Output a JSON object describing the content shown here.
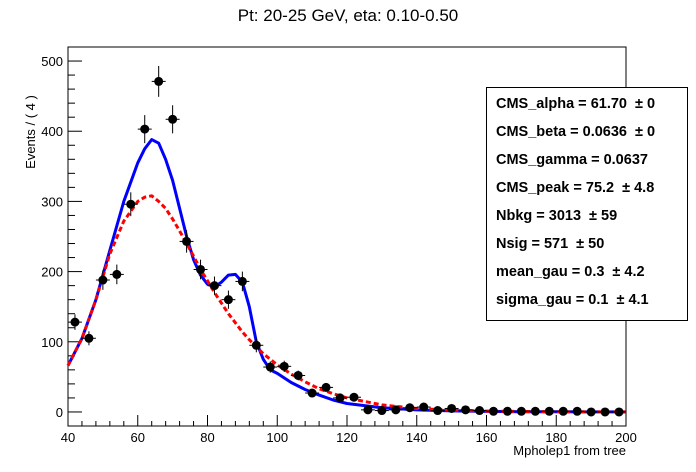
{
  "chart_data": {
    "type": "scatter",
    "title": "Pt: 20-25 GeV, eta: 0.10-0.50",
    "xlabel": "Mpholep1 from tree",
    "ylabel": "Events / ( 4 )",
    "xlim": [
      40,
      200
    ],
    "ylim": [
      -20,
      520
    ],
    "xticks": [
      "40",
      "60",
      "80",
      "100",
      "120",
      "140",
      "160",
      "180",
      "200"
    ],
    "yticks": [
      "0",
      "100",
      "200",
      "300",
      "400",
      "500"
    ],
    "bin_width": 4,
    "points": {
      "x": [
        42,
        46,
        50,
        54,
        58,
        62,
        66,
        70,
        74,
        78,
        82,
        86,
        90,
        94,
        98,
        102,
        106,
        110,
        114,
        118,
        122,
        126,
        130,
        134,
        138,
        142,
        146,
        150,
        154,
        158,
        162,
        166,
        170,
        174,
        178,
        182,
        186,
        190,
        194,
        198
      ],
      "y": [
        128,
        105,
        188,
        196,
        296,
        403,
        471,
        417,
        243,
        203,
        180,
        160,
        186,
        95,
        64,
        65,
        52,
        27,
        35,
        20,
        21,
        3,
        2,
        3,
        6,
        7,
        2,
        5,
        3,
        2,
        1,
        1,
        1,
        1,
        1,
        1,
        1,
        0,
        0,
        0
      ],
      "yerr": [
        11,
        10,
        14,
        14,
        17,
        20,
        22,
        20,
        16,
        14,
        13,
        13,
        14,
        10,
        8,
        8,
        7,
        5,
        6,
        4,
        5,
        2,
        1,
        2,
        2,
        3,
        1,
        2,
        2,
        1,
        1,
        1,
        1,
        1,
        1,
        1,
        1,
        1,
        1,
        1
      ]
    },
    "series": [
      {
        "color": "#0000ff",
        "style": "solid",
        "x": [
          40,
          44,
          48,
          52,
          56,
          60,
          62,
          64,
          66,
          68,
          70,
          72,
          74,
          76,
          78,
          80,
          82,
          84,
          86,
          88,
          90,
          92,
          94,
          96,
          98,
          100,
          104,
          108,
          112,
          116,
          120,
          130,
          140,
          150,
          160,
          170,
          180,
          190,
          200
        ],
        "y": [
          66,
          105,
          160,
          230,
          300,
          355,
          375,
          388,
          383,
          360,
          330,
          290,
          250,
          217,
          195,
          182,
          178,
          185,
          195,
          196,
          185,
          150,
          100,
          75,
          60,
          55,
          42,
          32,
          24,
          17,
          12,
          6,
          3,
          1.5,
          0.8,
          0.4,
          0.2,
          0.1,
          0.05
        ]
      },
      {
        "color": "#ff0000",
        "style": "dashed",
        "x": [
          40,
          44,
          48,
          52,
          56,
          60,
          62,
          64,
          66,
          68,
          70,
          72,
          74,
          76,
          78,
          80,
          82,
          84,
          86,
          88,
          90,
          92,
          94,
          96,
          98,
          100,
          104,
          108,
          112,
          116,
          120,
          130,
          140,
          150,
          160,
          170,
          180,
          190,
          200
        ],
        "y": [
          66,
          105,
          160,
          225,
          272,
          300,
          306,
          308,
          300,
          290,
          275,
          258,
          240,
          222,
          203,
          187,
          170,
          155,
          140,
          127,
          114,
          103,
          93,
          83,
          75,
          67,
          54,
          43,
          33,
          26,
          20,
          10,
          5,
          2.5,
          1.2,
          0.6,
          0.3,
          0.15,
          0.07
        ]
      }
    ],
    "stats": [
      {
        "label": "CMS_alpha = ",
        "value": "61.70",
        "err": "± 0"
      },
      {
        "label": "CMS_beta = ",
        "value": "0.0636",
        "err": "± 0"
      },
      {
        "label": "CMS_gamma = ",
        "value": "0.0637",
        "err": ""
      },
      {
        "label": "CMS_peak = ",
        "value": "75.2",
        "err": "± 4.8"
      },
      {
        "label": "Nbkg = ",
        "value": "3013",
        "err": "± 59"
      },
      {
        "label": "Nsig = ",
        "value": "571",
        "err": "± 50"
      },
      {
        "label": "mean_gau = ",
        "value": "0.3",
        "err": "± 4.2"
      },
      {
        "label": "sigma_gau = ",
        "value": "0.1",
        "err": "± 4.1"
      }
    ]
  }
}
